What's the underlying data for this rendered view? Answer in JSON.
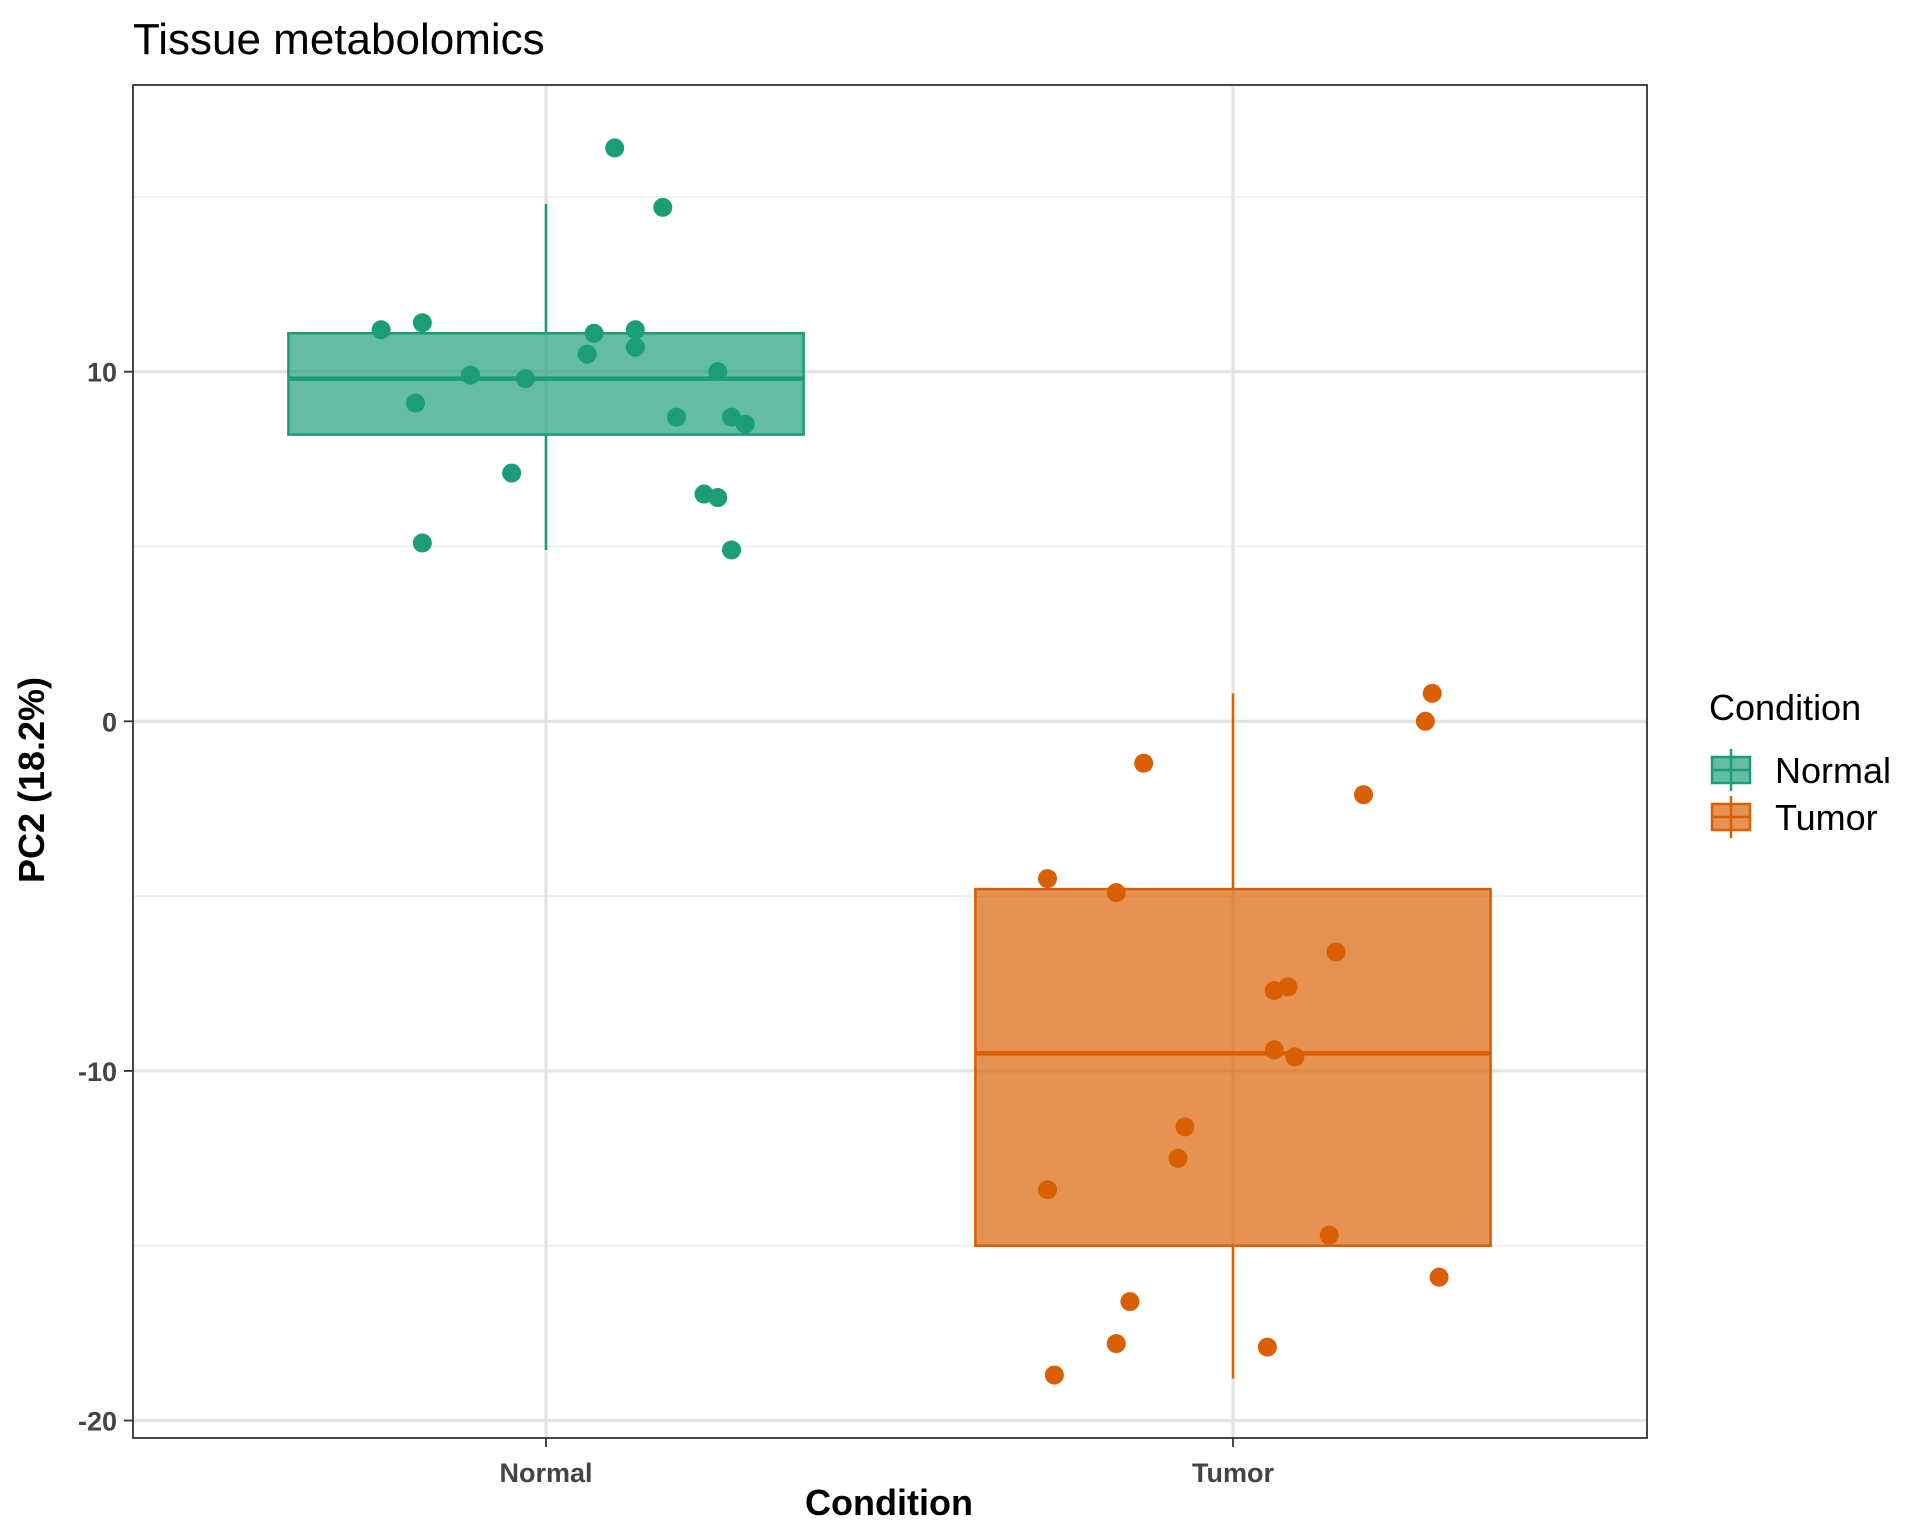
{
  "chart_data": {
    "type": "box",
    "title": "Tissue metabolomics",
    "xlabel": "Condition",
    "ylabel": "PC2 (18.2%)",
    "categories": [
      "Normal",
      "Tumor"
    ],
    "ylim": [
      -20.5,
      18.2
    ],
    "yticks": [
      -20,
      -10,
      0,
      10
    ],
    "grid": true,
    "legend": {
      "title": "Condition",
      "position": "right",
      "entries": [
        "Normal",
        "Tumor"
      ]
    },
    "colors": {
      "Normal": "#1b9e77",
      "Tumor": "#d95f02"
    },
    "boxes": [
      {
        "category": "Normal",
        "whisker_low": 4.9,
        "q1": 8.2,
        "median": 9.8,
        "q3": 11.1,
        "whisker_high": 14.8
      },
      {
        "category": "Tumor",
        "whisker_low": -18.8,
        "q1": -15.0,
        "median": -9.5,
        "q3": -4.8,
        "whisker_high": 0.8
      }
    ],
    "series": [
      {
        "name": "Normal",
        "points": [
          {
            "x": -0.24,
            "y": 11.2
          },
          {
            "x": -0.18,
            "y": 11.4
          },
          {
            "x": -0.19,
            "y": 9.1
          },
          {
            "x": -0.18,
            "y": 5.1
          },
          {
            "x": -0.11,
            "y": 9.9
          },
          {
            "x": -0.05,
            "y": 7.1
          },
          {
            "x": -0.03,
            "y": 9.8
          },
          {
            "x": 0.06,
            "y": 10.5
          },
          {
            "x": 0.07,
            "y": 11.1
          },
          {
            "x": 0.1,
            "y": 16.4
          },
          {
            "x": 0.13,
            "y": 10.7
          },
          {
            "x": 0.13,
            "y": 11.2
          },
          {
            "x": 0.17,
            "y": 14.7
          },
          {
            "x": 0.19,
            "y": 8.7
          },
          {
            "x": 0.23,
            "y": 6.5
          },
          {
            "x": 0.25,
            "y": 10.0
          },
          {
            "x": 0.25,
            "y": 6.4
          },
          {
            "x": 0.27,
            "y": 8.7
          },
          {
            "x": 0.27,
            "y": 4.9
          },
          {
            "x": 0.29,
            "y": 8.5
          }
        ]
      },
      {
        "name": "Tumor",
        "points": [
          {
            "x": -0.27,
            "y": -13.4
          },
          {
            "x": -0.27,
            "y": -4.5
          },
          {
            "x": -0.26,
            "y": -18.7
          },
          {
            "x": -0.17,
            "y": -4.9
          },
          {
            "x": -0.17,
            "y": -17.8
          },
          {
            "x": -0.15,
            "y": -16.6
          },
          {
            "x": -0.13,
            "y": -1.2
          },
          {
            "x": -0.08,
            "y": -12.5
          },
          {
            "x": -0.07,
            "y": -11.6
          },
          {
            "x": 0.05,
            "y": -17.9
          },
          {
            "x": 0.06,
            "y": -7.7
          },
          {
            "x": 0.06,
            "y": -9.4
          },
          {
            "x": 0.08,
            "y": -7.6
          },
          {
            "x": 0.09,
            "y": -9.6
          },
          {
            "x": 0.14,
            "y": -14.7
          },
          {
            "x": 0.15,
            "y": -6.6
          },
          {
            "x": 0.19,
            "y": -2.1
          },
          {
            "x": 0.28,
            "y": 0.0
          },
          {
            "x": 0.29,
            "y": 0.8
          },
          {
            "x": 0.3,
            "y": -15.9
          }
        ]
      }
    ]
  }
}
